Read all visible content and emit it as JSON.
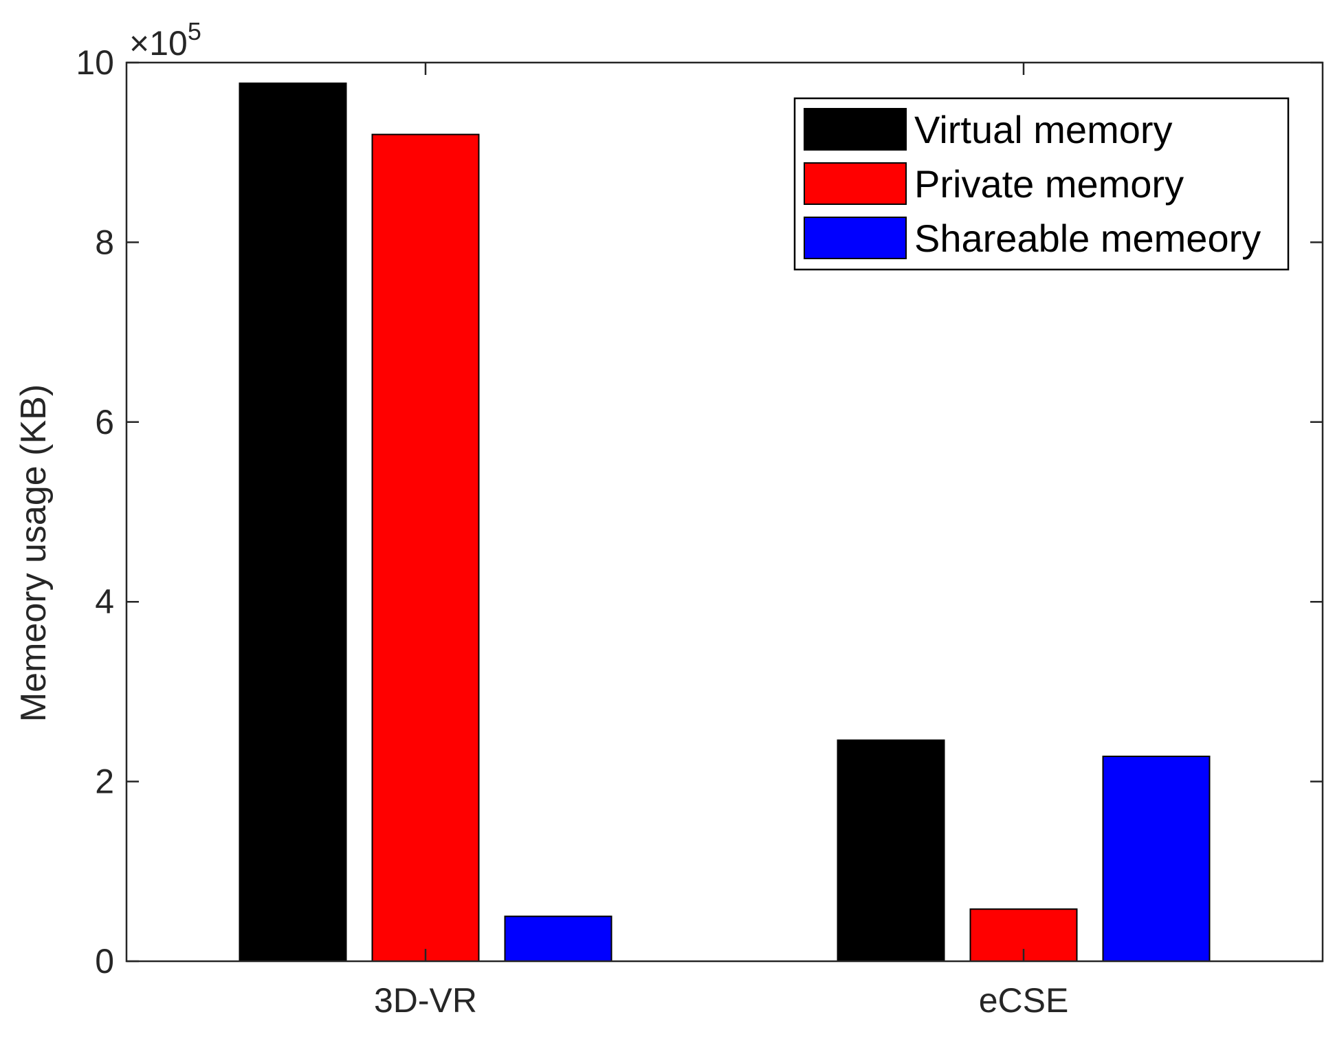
{
  "chart_data": {
    "type": "bar",
    "categories": [
      "3D-VR",
      "eCSE"
    ],
    "series": [
      {
        "name": "Virtual memory",
        "color": "#000000",
        "values": [
          977000,
          246000
        ]
      },
      {
        "name": "Private memory",
        "color": "#ff0000",
        "values": [
          920000,
          58000
        ]
      },
      {
        "name": "Shareable memeory",
        "color": "#0000ff",
        "values": [
          50000,
          228000
        ]
      }
    ],
    "xlabel": "",
    "ylabel": "Memeory usage (KB)",
    "ylim": [
      0,
      1000000
    ],
    "yticks": [
      0,
      2,
      4,
      6,
      8,
      10
    ],
    "ytick_labels": [
      "0",
      "2",
      "4",
      "6",
      "8",
      "10"
    ],
    "exponent_base": "×10",
    "exponent_power": "5",
    "legend_position": "top-right",
    "grid": false
  }
}
